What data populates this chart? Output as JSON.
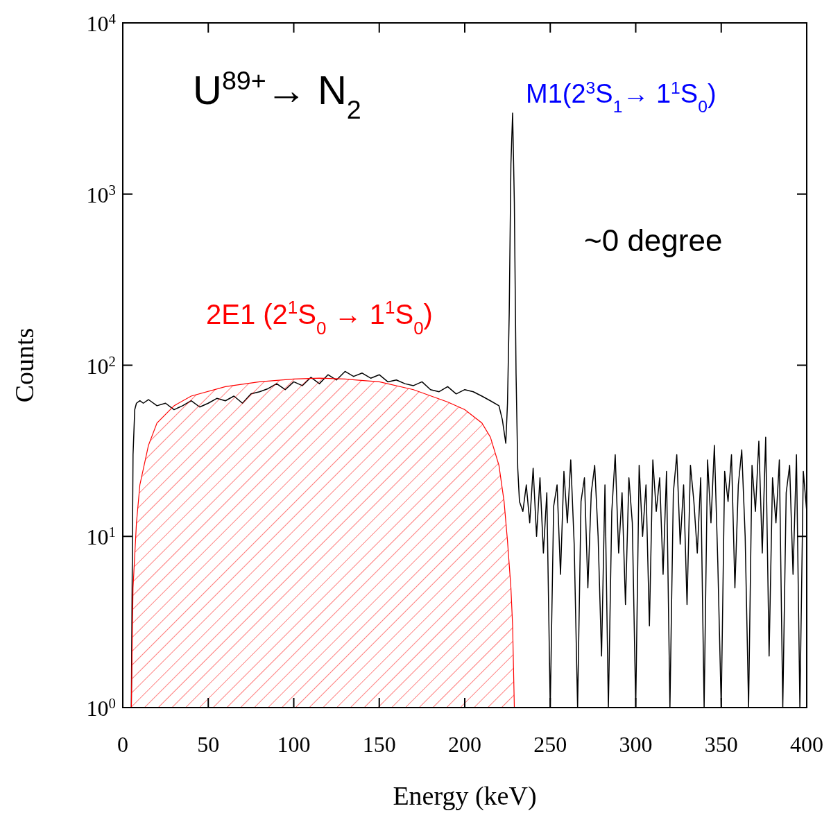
{
  "chart_data": {
    "type": "line",
    "xlabel": "Energy (keV)",
    "ylabel": "Counts",
    "log": "y",
    "xlim": [
      0,
      400
    ],
    "xticks": [
      0,
      50,
      100,
      150,
      200,
      250,
      300,
      350,
      400
    ],
    "ylim": [
      1,
      10000
    ],
    "yticks": [
      {
        "value": 1,
        "label": "10$^{0}$"
      },
      {
        "value": 10,
        "label": "10$^{1}$"
      },
      {
        "value": 100,
        "label": "10$^{2}$"
      },
      {
        "value": 1000,
        "label": "10$^{3}$"
      },
      {
        "value": 10000,
        "label": "10$^{4}$"
      }
    ],
    "grid": false,
    "legend": false,
    "series": [
      {
        "color": "#000000",
        "x": [
          5,
          6,
          7,
          8,
          10,
          12,
          15,
          20,
          25,
          30,
          35,
          40,
          45,
          50,
          55,
          60,
          65,
          70,
          75,
          80,
          85,
          90,
          95,
          100,
          105,
          110,
          115,
          120,
          125,
          130,
          135,
          140,
          145,
          150,
          155,
          160,
          165,
          170,
          175,
          180,
          185,
          190,
          195,
          200,
          205,
          210,
          215,
          220,
          222,
          224,
          225,
          226,
          227,
          228,
          229,
          230,
          231,
          232,
          234,
          236,
          238,
          240,
          242,
          244,
          246,
          248,
          250,
          252,
          254,
          256,
          258,
          260,
          262,
          264,
          266,
          268,
          270,
          272,
          274,
          276,
          278,
          280,
          282,
          284,
          286,
          288,
          290,
          292,
          294,
          296,
          298,
          300,
          302,
          304,
          306,
          308,
          310,
          312,
          314,
          316,
          318,
          320,
          322,
          324,
          326,
          328,
          330,
          332,
          334,
          336,
          338,
          340,
          342,
          344,
          346,
          348,
          350,
          352,
          354,
          356,
          358,
          360,
          362,
          364,
          366,
          368,
          370,
          372,
          374,
          376,
          378,
          380,
          382,
          384,
          386,
          388,
          390,
          392,
          394,
          396,
          398,
          400
        ],
        "values": [
          1,
          30,
          55,
          60,
          62,
          60,
          63,
          58,
          60,
          55,
          58,
          62,
          57,
          60,
          64,
          62,
          66,
          60,
          68,
          70,
          73,
          78,
          72,
          80,
          76,
          85,
          78,
          88,
          82,
          92,
          86,
          90,
          84,
          88,
          80,
          82,
          78,
          76,
          80,
          72,
          70,
          75,
          68,
          72,
          70,
          66,
          62,
          58,
          48,
          35,
          60,
          200,
          1500,
          2970,
          900,
          90,
          25,
          16,
          14,
          20,
          12,
          25,
          10,
          22,
          8,
          18,
          1,
          15,
          20,
          6,
          24,
          12,
          28,
          9,
          1,
          16,
          22,
          5,
          18,
          26,
          10,
          2,
          20,
          1,
          14,
          30,
          8,
          18,
          4,
          22,
          12,
          1,
          26,
          10,
          20,
          3,
          28,
          14,
          22,
          6,
          24,
          1,
          18,
          30,
          9,
          20,
          4,
          26,
          16,
          8,
          22,
          1,
          28,
          12,
          34,
          7,
          1,
          24,
          16,
          30,
          5,
          20,
          32,
          10,
          1,
          26,
          14,
          36,
          8,
          38,
          2,
          22,
          12,
          28,
          1,
          18,
          26,
          6,
          30,
          1,
          24,
          14
        ]
      },
      {
        "type": "area",
        "name": "2E1 (2$^{1}$S$_{0}$ → 1$^{1}$S$_{0}$)",
        "color": "#ff0000",
        "x": [
          5,
          6,
          8,
          10,
          15,
          20,
          30,
          40,
          60,
          80,
          100,
          115,
          130,
          150,
          170,
          190,
          200,
          210,
          215,
          220,
          223,
          225,
          227,
          228,
          229
        ],
        "values": [
          1,
          5,
          12,
          20,
          34,
          46,
          58,
          66,
          75,
          80,
          83,
          84,
          83,
          80,
          72,
          61,
          55,
          46,
          38,
          26,
          16,
          9.4,
          5,
          3,
          1
        ]
      }
    ],
    "annotations": [
      "U$^{89+}$→ N$_{2}$",
      "~0 degree",
      "M1(2$^{3}$S$_{1}$→ 1$^{1}$S$_{0}$)"
    ]
  }
}
